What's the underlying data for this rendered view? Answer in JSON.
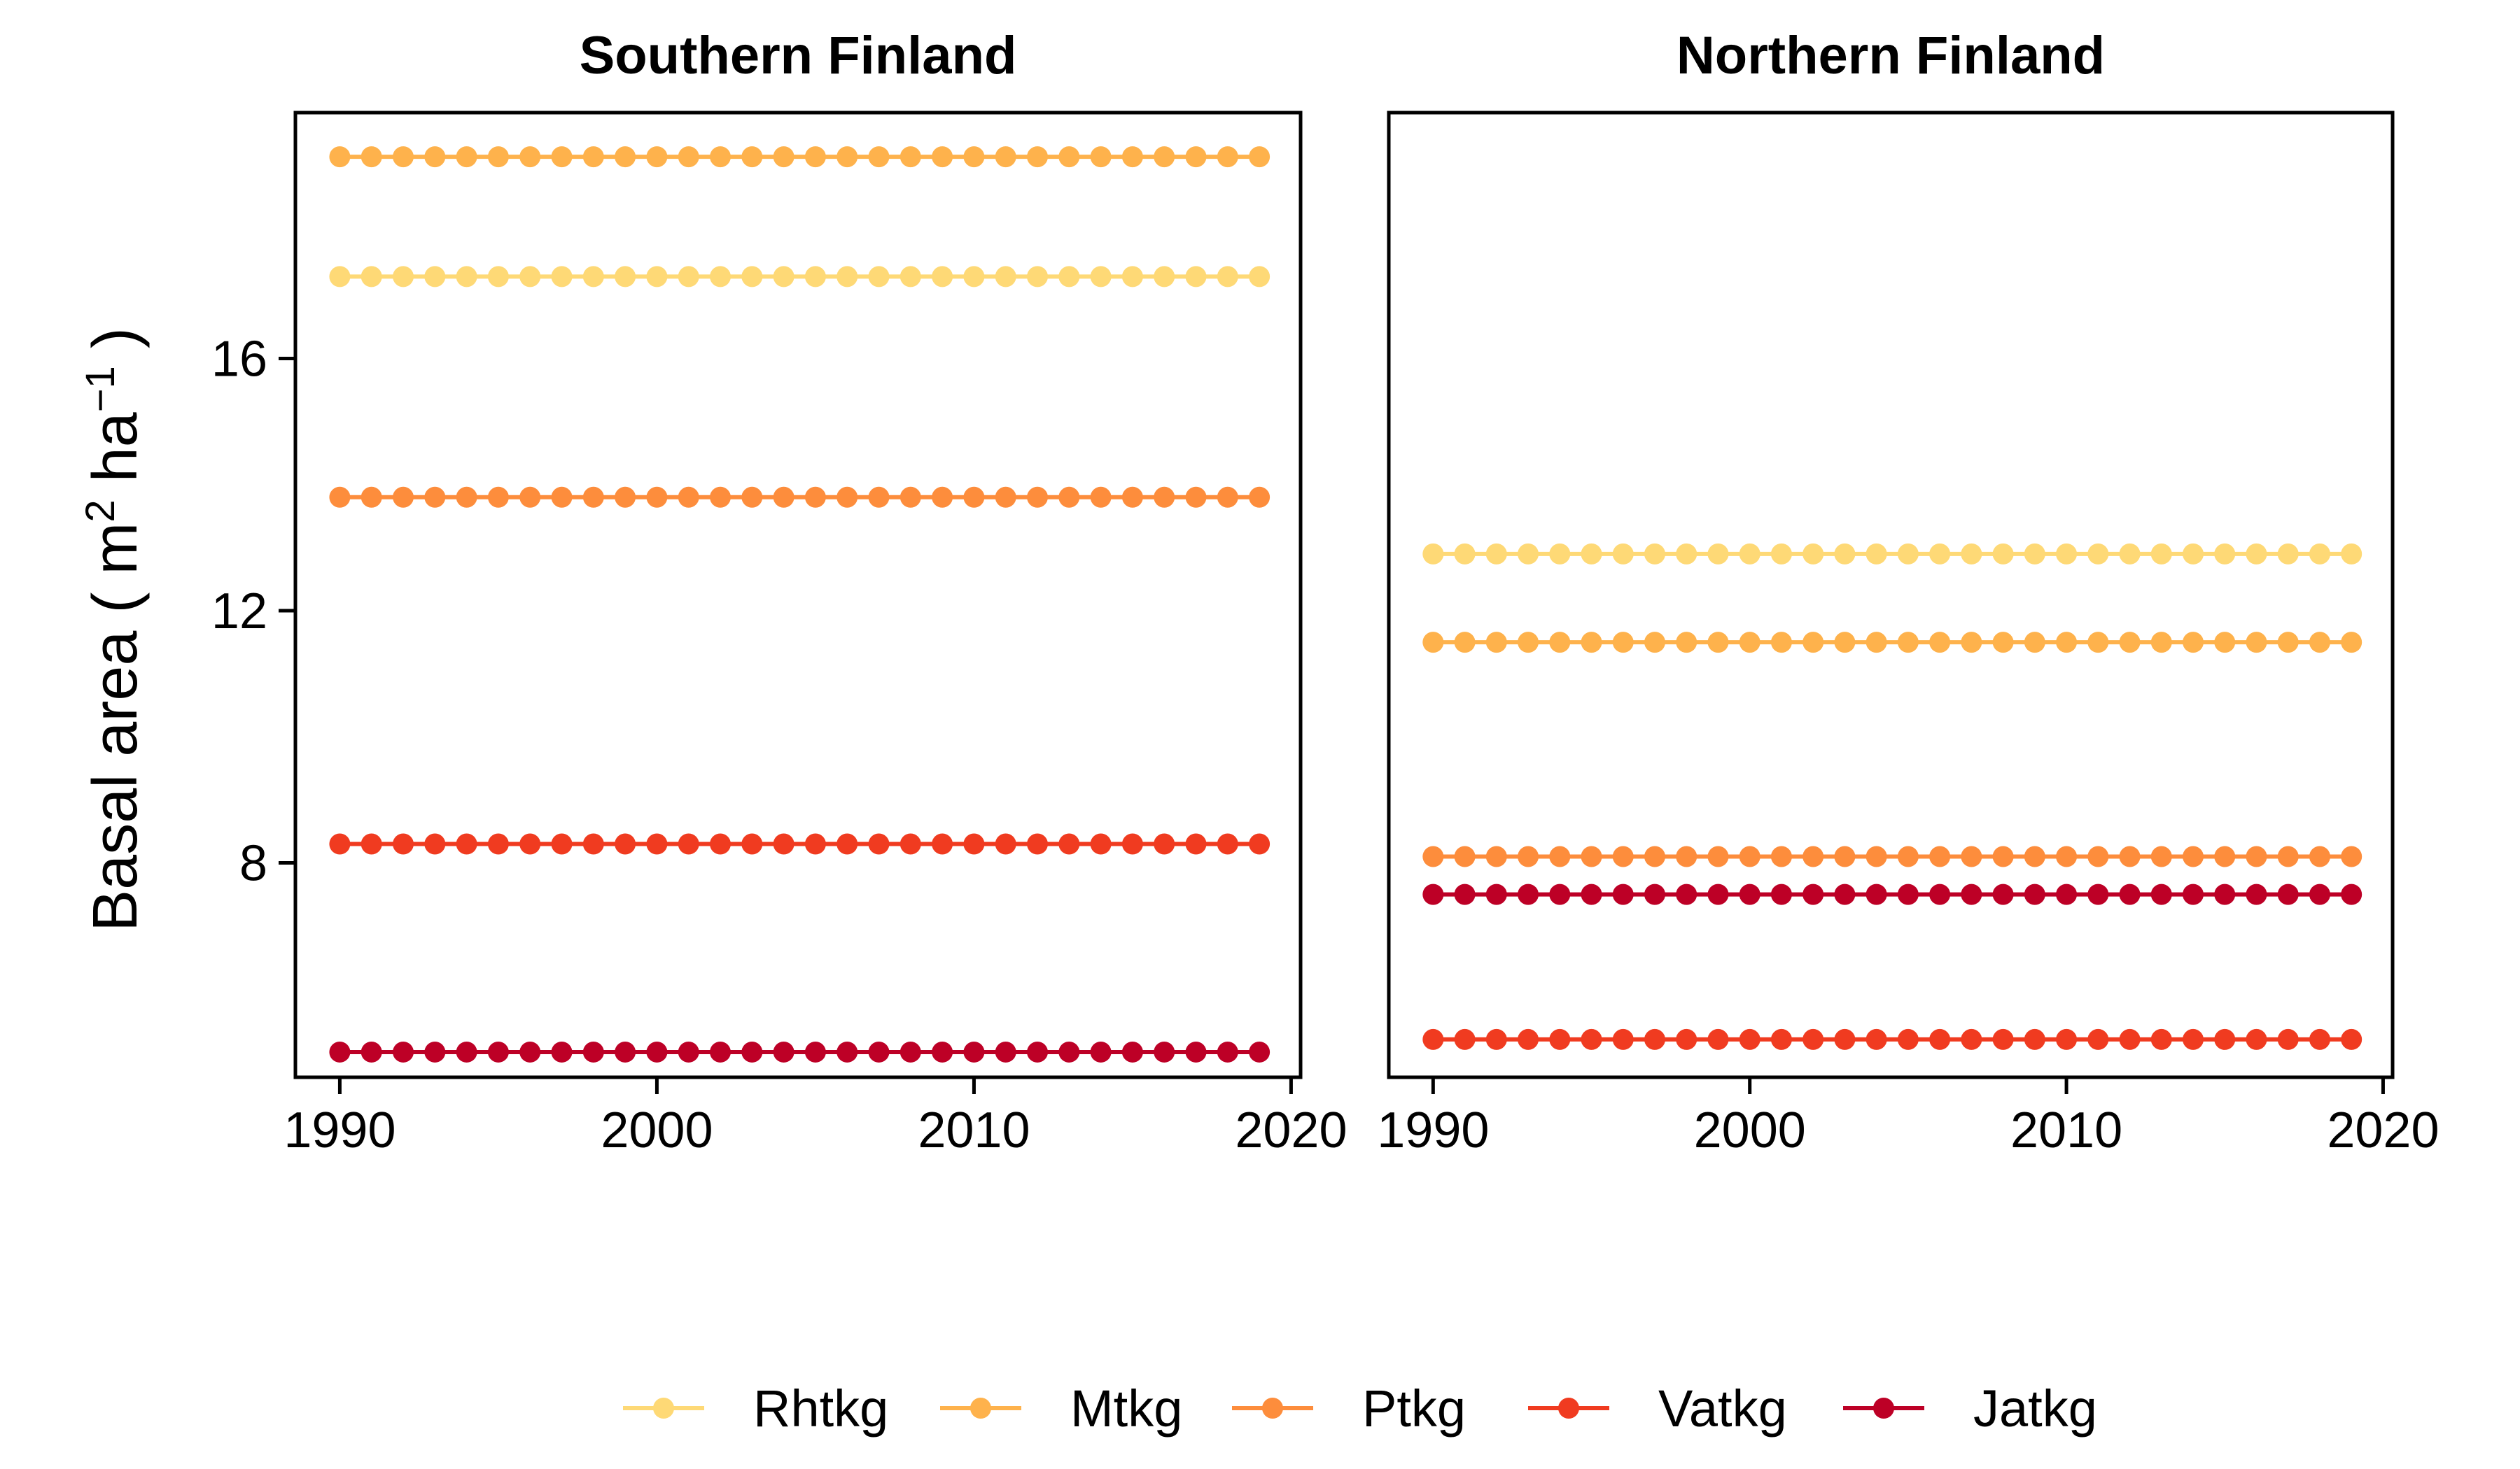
{
  "chart_data": {
    "type": "scatter",
    "ylabel": "Basal area ( m² ha⁻¹ )",
    "ylabel_parts": {
      "base": "Basal area ( m",
      "sup1": "2",
      "mid": " ha",
      "sup2": "−1",
      "end": " )"
    },
    "years": [
      1990,
      1991,
      1992,
      1993,
      1994,
      1995,
      1996,
      1997,
      1998,
      1999,
      2000,
      2001,
      2002,
      2003,
      2004,
      2005,
      2006,
      2007,
      2008,
      2009,
      2010,
      2011,
      2012,
      2013,
      2014,
      2015,
      2016,
      2017,
      2018,
      2019
    ],
    "xlim": [
      1988.6,
      2020.3
    ],
    "xticks": [
      1990,
      2000,
      2010,
      2020
    ],
    "ylim": [
      4.6,
      19.9
    ],
    "yticks": [
      8,
      12,
      16
    ],
    "grid": false,
    "legend_position": "bottom",
    "legend": [
      {
        "name": "Rhtkg",
        "color": "#FED976"
      },
      {
        "name": "Mtkg",
        "color": "#FEB24C"
      },
      {
        "name": "Ptkg",
        "color": "#FD8D3C"
      },
      {
        "name": "Vatkg",
        "color": "#F03B20"
      },
      {
        "name": "Jatkg",
        "color": "#BD0026"
      }
    ],
    "panels": [
      {
        "title": "Southern Finland",
        "series": [
          {
            "name": "Rhtkg",
            "value": 17.3
          },
          {
            "name": "Mtkg",
            "value": 19.2
          },
          {
            "name": "Ptkg",
            "value": 13.8
          },
          {
            "name": "Vatkg",
            "value": 8.3
          },
          {
            "name": "Jatkg",
            "value": 5.0
          }
        ]
      },
      {
        "title": "Northern Finland",
        "series": [
          {
            "name": "Rhtkg",
            "value": 12.9
          },
          {
            "name": "Mtkg",
            "value": 11.5
          },
          {
            "name": "Ptkg",
            "value": 8.1
          },
          {
            "name": "Vatkg",
            "value": 5.2
          },
          {
            "name": "Jatkg",
            "value": 7.5
          }
        ]
      }
    ]
  }
}
